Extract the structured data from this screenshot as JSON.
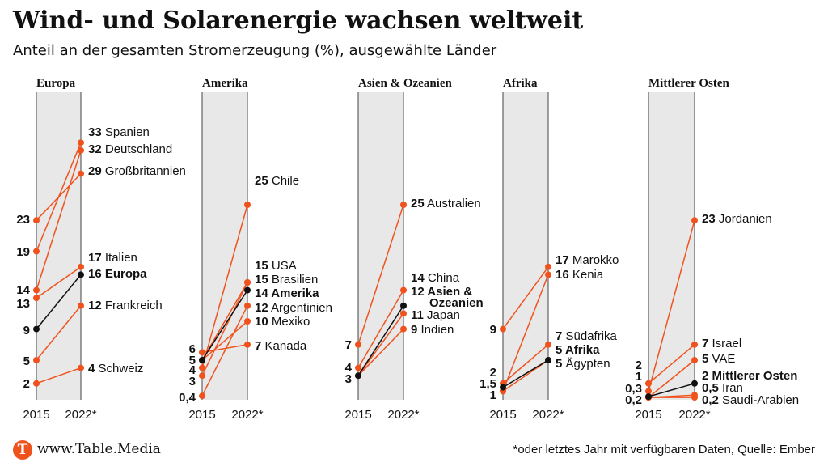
{
  "header": {
    "title": "Wind- und Solarenergie wachsen weltweit",
    "subtitle": "Anteil an der gesamten Stromerzeugung (%), ausgewählte Länder"
  },
  "footer": {
    "logo_letter": "T",
    "url": "www.Table.Media",
    "note": "*oder letztes Jahr mit verfügbaren Daten, Quelle: Ember"
  },
  "colors": {
    "country": "#f0521e",
    "aggregate": "#111111",
    "band": "#e8e8e8"
  },
  "chart_data": {
    "type": "line",
    "x": [
      "2015",
      "2022*"
    ],
    "panels": [
      {
        "title": "Europa",
        "ylim": [
          0,
          35
        ],
        "series": [
          {
            "name": "Spanien",
            "values": [
              19,
              33
            ],
            "label": "33",
            "left_label": "19"
          },
          {
            "name": "Deutschland",
            "values": [
              14,
              32
            ],
            "label": "32",
            "left_label": "14"
          },
          {
            "name": "Großbritannien",
            "values": [
              23,
              29
            ],
            "label": "29",
            "left_label": "23"
          },
          {
            "name": "Italien",
            "values": [
              13,
              17
            ],
            "label": "17",
            "left_label": "13"
          },
          {
            "name": "Europa",
            "values": [
              9,
              16
            ],
            "label": "16",
            "left_label": "9",
            "aggregate": true
          },
          {
            "name": "Frankreich",
            "values": [
              5,
              12
            ],
            "label": "12",
            "left_label": "5"
          },
          {
            "name": "Schweiz",
            "values": [
              2,
              4
            ],
            "label": "4",
            "left_label": "2"
          }
        ]
      },
      {
        "title": "Amerika",
        "ylim": [
          0,
          35
        ],
        "series": [
          {
            "name": "Chile",
            "values": [
              4,
              25
            ],
            "label": "25",
            "left_label": "4"
          },
          {
            "name": "USA",
            "values": [
              5,
              15
            ],
            "label": "15"
          },
          {
            "name": "Brasilien",
            "values": [
              3,
              15
            ],
            "label": "15",
            "left_label": "3"
          },
          {
            "name": "Amerika",
            "values": [
              5,
              14
            ],
            "label": "14",
            "left_label": "5",
            "aggregate": true
          },
          {
            "name": "Argentinien",
            "values": [
              0.4,
              12
            ],
            "label": "12",
            "left_label": "0,4"
          },
          {
            "name": "Mexiko",
            "values": [
              5,
              10
            ],
            "label": "10"
          },
          {
            "name": "Kanada",
            "values": [
              6,
              7
            ],
            "label": "7",
            "left_label": "6"
          }
        ]
      },
      {
        "title": "Asien & Ozeanien",
        "ylim": [
          0,
          35
        ],
        "series": [
          {
            "name": "Australien",
            "values": [
              7,
              25
            ],
            "label": "25",
            "left_label": "7"
          },
          {
            "name": "China",
            "values": [
              4,
              14
            ],
            "label": "14",
            "left_label": "4"
          },
          {
            "name": "Asien & Ozeanien",
            "values": [
              3,
              12
            ],
            "label": "12",
            "left_label": "3",
            "aggregate": true
          },
          {
            "name": "Japan",
            "values": [
              3,
              11
            ],
            "label": "11"
          },
          {
            "name": "Indien",
            "values": [
              3,
              9
            ],
            "label": "9"
          }
        ]
      },
      {
        "title": "Afrika",
        "ylim": [
          0,
          35
        ],
        "series": [
          {
            "name": "Marokko",
            "values": [
              9,
              17
            ],
            "label": "17",
            "left_label": "9"
          },
          {
            "name": "Kenia",
            "values": [
              1,
              16
            ],
            "label": "16",
            "left_label": "1"
          },
          {
            "name": "Südafrika",
            "values": [
              2,
              7
            ],
            "label": "7",
            "left_label": "2"
          },
          {
            "name": "Afrika",
            "values": [
              1.5,
              5
            ],
            "label": "5",
            "left_label": "1,5",
            "aggregate": true
          },
          {
            "name": "Ägypten",
            "values": [
              1,
              5
            ],
            "label": "5"
          }
        ]
      },
      {
        "title": "Mittlerer Osten",
        "ylim": [
          0,
          35
        ],
        "series": [
          {
            "name": "Jordanien",
            "values": [
              1,
              23
            ],
            "label": "23",
            "left_label": "1"
          },
          {
            "name": "Israel",
            "values": [
              2,
              7
            ],
            "label": "7",
            "left_label": "2"
          },
          {
            "name": "VAE",
            "values": [
              0.2,
              5
            ],
            "label": "5",
            "left_label": "0,2"
          },
          {
            "name": "Mittlerer Osten",
            "values": [
              0.3,
              2
            ],
            "label": "2",
            "left_label": "0,3",
            "aggregate": true
          },
          {
            "name": "Iran",
            "values": [
              0.2,
              0.5
            ],
            "label": "0,5"
          },
          {
            "name": "Saudi-Arabien",
            "values": [
              0.2,
              0.2
            ],
            "label": "0,2"
          }
        ]
      }
    ]
  }
}
